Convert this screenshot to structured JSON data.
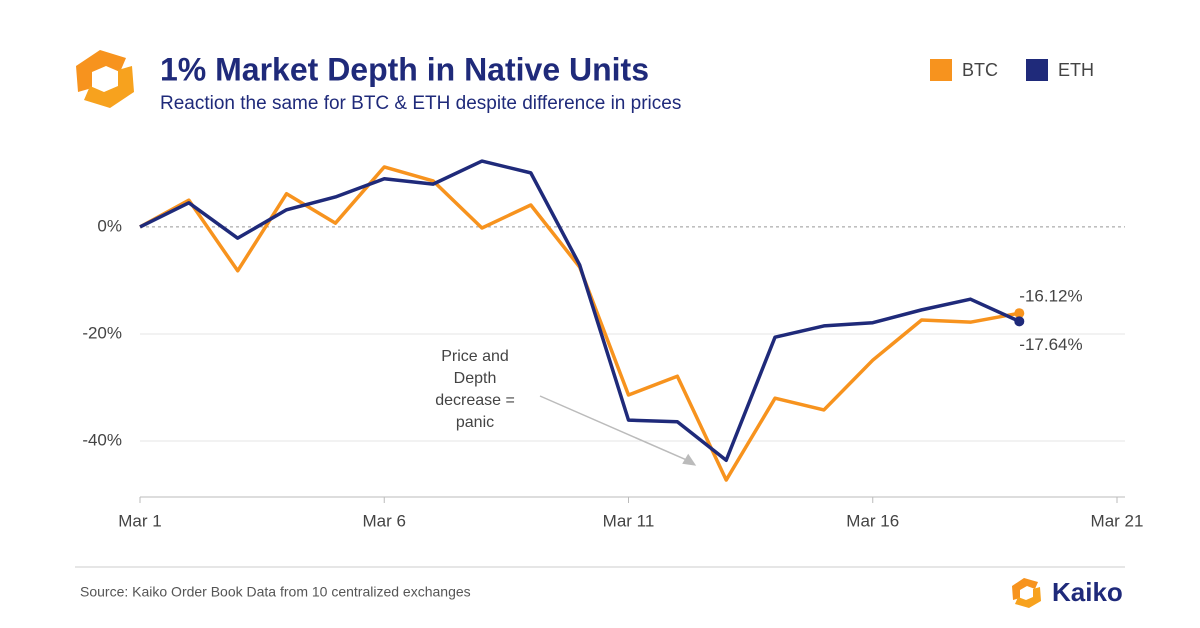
{
  "chart_data": {
    "type": "line",
    "title": "1% Market Depth in Native Units",
    "subtitle": "Reaction the same for BTC & ETH despite difference in prices",
    "source": "Source: Kaiko Order Book Data from 10 centralized exchanges",
    "brand": "Kaiko",
    "x": [
      1,
      2,
      3,
      4,
      5,
      6,
      7,
      8,
      9,
      10,
      11,
      12,
      13,
      14,
      15,
      16,
      17,
      18,
      19
    ],
    "xlim": [
      1,
      21
    ],
    "xticks": [
      {
        "value": 1,
        "label": "Mar 1"
      },
      {
        "value": 6,
        "label": "Mar 6"
      },
      {
        "value": 11,
        "label": "Mar 11"
      },
      {
        "value": 16,
        "label": "Mar 16"
      },
      {
        "value": 21,
        "label": "Mar 21"
      }
    ],
    "ylim": [
      -50,
      14
    ],
    "yticks": [
      {
        "value": 0,
        "label": "0%"
      },
      {
        "value": -20,
        "label": "-20%"
      },
      {
        "value": -40,
        "label": "-40%"
      }
    ],
    "grid": true,
    "legend": "top-right",
    "series": [
      {
        "name": "BTC",
        "color": "#f7931e",
        "values": [
          0,
          5,
          -8.2,
          6.2,
          0.7,
          11.2,
          8.6,
          -0.2,
          4.1,
          -7.5,
          -31.4,
          -27.9,
          -47.3,
          -32,
          -34.2,
          -24.9,
          -17.4,
          -17.8,
          -16.12
        ],
        "value_labels": [
          null,
          null,
          null,
          null,
          null,
          null,
          null,
          null,
          null,
          null,
          null,
          null,
          null,
          null,
          null,
          null,
          null,
          null,
          "-16.12%"
        ]
      },
      {
        "name": "ETH",
        "color": "#1f2a7a",
        "values": [
          0,
          4.5,
          -2.1,
          3.2,
          5.6,
          9,
          8,
          12.3,
          10.1,
          -7.1,
          -36.1,
          -36.4,
          -43.6,
          -20.6,
          -18.5,
          -17.9,
          -15.5,
          -13.5,
          -17.64
        ],
        "value_labels": [
          null,
          null,
          null,
          null,
          null,
          null,
          null,
          null,
          null,
          null,
          null,
          null,
          null,
          null,
          null,
          null,
          null,
          null,
          "-17.64%"
        ]
      }
    ],
    "annotation": {
      "lines": [
        "Price and",
        "Depth",
        "decrease =",
        "panic"
      ],
      "x": 13,
      "y": -45
    }
  }
}
